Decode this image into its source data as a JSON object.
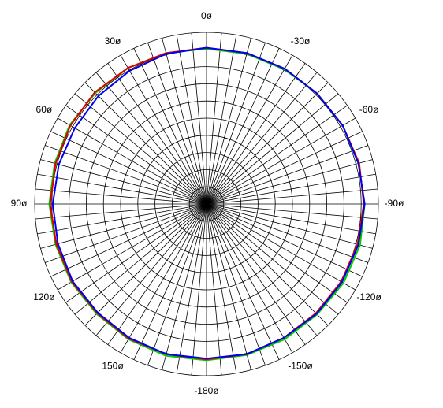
{
  "chart_data": {
    "type": "polar",
    "theta": [
      0,
      15,
      30,
      45,
      60,
      75,
      90,
      105,
      120,
      135,
      150,
      165,
      180,
      195,
      210,
      225,
      240,
      255,
      270,
      285,
      300,
      315,
      330,
      345
    ],
    "series": [
      {
        "color": "#00cc00",
        "values": [
          9.05,
          9.1,
          9.15,
          9.15,
          9.2,
          9.15,
          9.15,
          9.1,
          9.1,
          9.05,
          9.1,
          9.15,
          9.1,
          9.1,
          9.1,
          9.1,
          9.2,
          9.25,
          9.2,
          9.15,
          9.15,
          9.1,
          9.05,
          9.05
        ]
      },
      {
        "color": "#dd0000",
        "values": [
          9.1,
          9.1,
          9.15,
          9.2,
          9.15,
          9.1,
          9.1,
          9.05,
          9.05,
          9.0,
          9.05,
          9.05,
          9.05,
          9.05,
          9.0,
          9.0,
          9.05,
          9.1,
          9.15,
          9.2,
          9.15,
          9.1,
          9.1,
          9.1
        ]
      },
      {
        "color": "#0000ee",
        "values": [
          9.1,
          9.05,
          8.95,
          8.9,
          8.85,
          8.9,
          8.95,
          8.95,
          9.0,
          8.95,
          9.0,
          9.05,
          9.0,
          9.05,
          9.0,
          9.05,
          9.1,
          9.15,
          9.2,
          9.15,
          9.15,
          9.1,
          9.1,
          9.1
        ]
      }
    ],
    "rlim": [
      0,
      10
    ],
    "rticks": [
      1,
      2,
      3,
      4,
      5,
      6,
      7,
      8,
      9,
      10
    ],
    "thetaticks": [
      {
        "value": 0,
        "label": "0ø"
      },
      {
        "value": 30,
        "label": "30ø"
      },
      {
        "value": -30,
        "label": "-30ø"
      },
      {
        "value": 60,
        "label": "60ø"
      },
      {
        "value": -60,
        "label": "-60ø"
      },
      {
        "value": 90,
        "label": "90ø"
      },
      {
        "value": -90,
        "label": "-90ø"
      },
      {
        "value": 120,
        "label": "120ø"
      },
      {
        "value": -120,
        "label": "-120ø"
      },
      {
        "value": 150,
        "label": "150ø"
      },
      {
        "value": -150,
        "label": "-150ø"
      },
      {
        "value": -180,
        "label": "-180ø"
      }
    ]
  }
}
